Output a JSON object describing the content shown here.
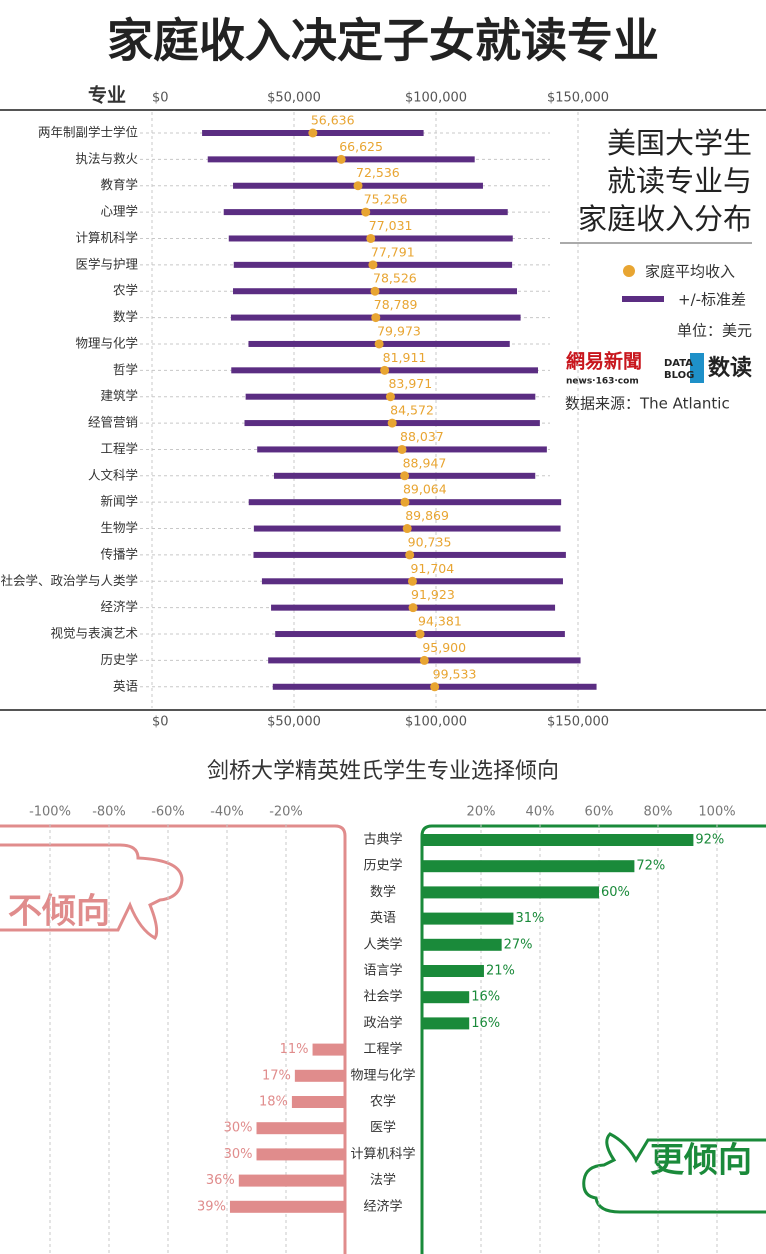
{
  "title": "家庭收入决定子女就读专业",
  "chart_data": [
    {
      "type": "range",
      "y_label": "专业",
      "sidebar_title": [
        "美国大学生",
        "就读专业与",
        "家庭收入分布"
      ],
      "unit": "单位：美元",
      "source": "数据来源：The Atlantic",
      "logo": {
        "name": "網易新聞",
        "url": "news·163·com",
        "blog": [
          "DATA",
          "BLOG"
        ],
        "brand": "数读"
      },
      "categories": [
        "两年制副学士学位",
        "执法与救火",
        "教育学",
        "心理学",
        "计算机科学",
        "医学与护理",
        "农学",
        "数学",
        "物理与化学",
        "哲学",
        "建筑学",
        "经管营销",
        "工程学",
        "人文科学",
        "新闻学",
        "生物学",
        "传播学",
        "社会学、政治学与人类学",
        "经济学",
        "视觉与表演艺术",
        "历史学",
        "英语"
      ],
      "series": [
        {
          "name": "家庭平均收入",
          "color": "#e8a532",
          "values": [
            56636,
            66625,
            72536,
            75256,
            77031,
            77791,
            78526,
            78789,
            79973,
            81911,
            83971,
            84572,
            88037,
            88947,
            89064,
            89869,
            90735,
            91704,
            91923,
            94381,
            95900,
            99533
          ],
          "value_labels": [
            "56,636",
            "66,625",
            "72,536",
            "75,256",
            "77,031",
            "77,791",
            "78,526",
            "78,789",
            "79,973",
            "81,911",
            "83,971",
            "84,572",
            "88,037",
            "88,947",
            "89,064",
            "89,869",
            "90,735",
            "91,704",
            "91,923",
            "94,381",
            "95,900",
            "99,533"
          ]
        },
        {
          "name": "+/-标准差",
          "color": "#5b2d82",
          "values": [
            39000,
            47000,
            44000,
            50000,
            50000,
            49000,
            50000,
            51000,
            46000,
            54000,
            51000,
            52000,
            51000,
            46000,
            55000,
            54000,
            55000,
            53000,
            50000,
            51000,
            55000,
            57000
          ]
        }
      ],
      "xlim": [
        0,
        150000
      ],
      "xticks": [
        {
          "value": 0,
          "label": "$0"
        },
        {
          "value": 50000,
          "label": "$50,000"
        },
        {
          "value": 100000,
          "label": "$100,000"
        },
        {
          "value": 150000,
          "label": "$150,000"
        }
      ],
      "grid": true
    },
    {
      "type": "diverging",
      "title": "剑桥大学精英姓氏学生专业选择倾向",
      "annotations": [
        "不倾向",
        "更倾向"
      ],
      "categories": [
        "古典学",
        "历史学",
        "数学",
        "英语",
        "人类学",
        "语言学",
        "社会学",
        "政治学",
        "工程学",
        "物理与化学",
        "农学",
        "医学",
        "计算机科学",
        "法学",
        "经济学"
      ],
      "values": [
        92,
        72,
        60,
        31,
        27,
        21,
        16,
        16,
        -11,
        -17,
        -18,
        -30,
        -30,
        -36,
        -39
      ],
      "value_labels": [
        "92%",
        "72%",
        "60%",
        "31%",
        "27%",
        "21%",
        "16%",
        "16%",
        "11%",
        "17%",
        "18%",
        "30%",
        "30%",
        "36%",
        "39%"
      ],
      "positive_color": "#1a8a3a",
      "negative_color": "#e08c8c",
      "xlim": [
        -100,
        100
      ],
      "xticks": [
        {
          "value": -100,
          "label": "-100%"
        },
        {
          "value": -80,
          "label": "-80%"
        },
        {
          "value": -60,
          "label": "-60%"
        },
        {
          "value": -40,
          "label": "-40%"
        },
        {
          "value": -20,
          "label": "-20%"
        },
        {
          "value": 20,
          "label": "20%"
        },
        {
          "value": 40,
          "label": "40%"
        },
        {
          "value": 60,
          "label": "60%"
        },
        {
          "value": 80,
          "label": "80%"
        },
        {
          "value": 100,
          "label": "100%"
        }
      ],
      "grid": true
    }
  ]
}
